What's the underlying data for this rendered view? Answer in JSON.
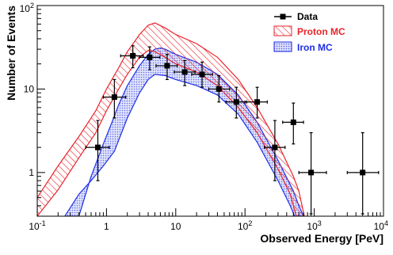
{
  "chart_data": {
    "type": "scatter",
    "xscale": "log",
    "yscale": "log",
    "xlabel": "Observed Energy [PeV]",
    "ylabel": "Number of Events",
    "xlim": [
      0.1,
      10000
    ],
    "ylim": [
      0.3,
      100
    ],
    "x_tick_labels": [
      {
        "base": "10",
        "exp": "-1"
      },
      {
        "base": "1",
        "exp": ""
      },
      {
        "base": "10",
        "exp": ""
      },
      {
        "base": "10",
        "exp": "2"
      },
      {
        "base": "10",
        "exp": "3"
      },
      {
        "base": "10",
        "exp": "4"
      }
    ],
    "y_tick_labels": [
      {
        "base": "1",
        "exp": ""
      },
      {
        "base": "10",
        "exp": ""
      },
      {
        "base": "10",
        "exp": "2"
      }
    ],
    "legend": {
      "position": "top-right",
      "entries": [
        {
          "label": "Data",
          "color": "#000000"
        },
        {
          "label": "Proton MC",
          "color": "#e8242c"
        },
        {
          "label": "Iron MC",
          "color": "#1e2ee8"
        }
      ]
    },
    "series": [
      {
        "name": "Data",
        "color": "#000000",
        "points": [
          {
            "x": 0.75,
            "y": 2,
            "xlo": 0.5,
            "xhi": 1.1,
            "ylo": 0.8,
            "yhi": 4.2
          },
          {
            "x": 1.3,
            "y": 8,
            "xlo": 0.9,
            "xhi": 1.9,
            "ylo": 4.5,
            "yhi": 13
          },
          {
            "x": 2.4,
            "y": 25,
            "xlo": 1.6,
            "xhi": 3.4,
            "ylo": 18,
            "yhi": 33
          },
          {
            "x": 4.2,
            "y": 24,
            "xlo": 3.0,
            "xhi": 5.9,
            "ylo": 17,
            "yhi": 32
          },
          {
            "x": 7.5,
            "y": 19,
            "xlo": 5.2,
            "xhi": 10.5,
            "ylo": 13,
            "yhi": 26
          },
          {
            "x": 13.5,
            "y": 16,
            "xlo": 9.5,
            "xhi": 19,
            "ylo": 11,
            "yhi": 22
          },
          {
            "x": 24,
            "y": 15,
            "xlo": 17,
            "xhi": 34,
            "ylo": 10.5,
            "yhi": 21
          },
          {
            "x": 42,
            "y": 10,
            "xlo": 30,
            "xhi": 60,
            "ylo": 7,
            "yhi": 14.5
          },
          {
            "x": 75,
            "y": 7,
            "xlo": 53,
            "xhi": 106,
            "ylo": 4.5,
            "yhi": 10.5
          },
          {
            "x": 150,
            "y": 7,
            "xlo": 100,
            "xhi": 210,
            "ylo": 4.5,
            "yhi": 10.5
          },
          {
            "x": 270,
            "y": 2,
            "xlo": 190,
            "xhi": 380,
            "ylo": 0.8,
            "yhi": 4.2
          },
          {
            "x": 500,
            "y": 4,
            "xlo": 350,
            "xhi": 700,
            "ylo": 2.2,
            "yhi": 6.8
          },
          {
            "x": 900,
            "y": 1,
            "xlo": 600,
            "xhi": 1500,
            "ylo": 0.32,
            "yhi": 3
          },
          {
            "x": 5000,
            "y": 1,
            "xlo": 3000,
            "xhi": 8500,
            "ylo": 0.32,
            "yhi": 3
          }
        ]
      },
      {
        "name": "Proton MC",
        "color": "#e8242c",
        "band_upper": [
          {
            "x": 0.1,
            "y": 0.5
          },
          {
            "x": 0.2,
            "y": 1.2
          },
          {
            "x": 0.4,
            "y": 2.7
          },
          {
            "x": 0.7,
            "y": 5.5
          },
          {
            "x": 1.0,
            "y": 10
          },
          {
            "x": 1.5,
            "y": 18
          },
          {
            "x": 2.0,
            "y": 28
          },
          {
            "x": 3.0,
            "y": 45
          },
          {
            "x": 4.0,
            "y": 58
          },
          {
            "x": 5.0,
            "y": 62
          },
          {
            "x": 7.0,
            "y": 54
          },
          {
            "x": 10,
            "y": 45
          },
          {
            "x": 20,
            "y": 35
          },
          {
            "x": 40,
            "y": 24
          },
          {
            "x": 80,
            "y": 13
          },
          {
            "x": 150,
            "y": 6
          },
          {
            "x": 300,
            "y": 2.2
          },
          {
            "x": 500,
            "y": 0.9
          },
          {
            "x": 600,
            "y": 0.6
          },
          {
            "x": 720,
            "y": 0.3
          }
        ],
        "band_lower": [
          {
            "x": 0.1,
            "y": 0.3
          },
          {
            "x": 0.2,
            "y": 0.62
          },
          {
            "x": 0.4,
            "y": 1.5
          },
          {
            "x": 0.7,
            "y": 3.0
          },
          {
            "x": 1.0,
            "y": 5.5
          },
          {
            "x": 1.5,
            "y": 10
          },
          {
            "x": 2.0,
            "y": 15
          },
          {
            "x": 3.0,
            "y": 24
          },
          {
            "x": 4.0,
            "y": 29
          },
          {
            "x": 5.0,
            "y": 28
          },
          {
            "x": 7.0,
            "y": 24
          },
          {
            "x": 10,
            "y": 20
          },
          {
            "x": 20,
            "y": 16
          },
          {
            "x": 40,
            "y": 11
          },
          {
            "x": 80,
            "y": 6
          },
          {
            "x": 150,
            "y": 3
          },
          {
            "x": 300,
            "y": 1.1
          },
          {
            "x": 450,
            "y": 0.55
          },
          {
            "x": 550,
            "y": 0.3
          }
        ]
      },
      {
        "name": "Iron MC",
        "color": "#1e2ee8",
        "band_upper": [
          {
            "x": 0.4,
            "y": 0.3
          },
          {
            "x": 0.6,
            "y": 0.9
          },
          {
            "x": 0.9,
            "y": 2.2
          },
          {
            "x": 1.2,
            "y": 4.0
          },
          {
            "x": 1.5,
            "y": 6.5
          },
          {
            "x": 2.0,
            "y": 11
          },
          {
            "x": 3.0,
            "y": 19
          },
          {
            "x": 4.0,
            "y": 26
          },
          {
            "x": 5.0,
            "y": 30
          },
          {
            "x": 6.0,
            "y": 31
          },
          {
            "x": 7.0,
            "y": 30
          },
          {
            "x": 10,
            "y": 26
          },
          {
            "x": 20,
            "y": 21
          },
          {
            "x": 40,
            "y": 15
          },
          {
            "x": 80,
            "y": 8.5
          },
          {
            "x": 150,
            "y": 4
          },
          {
            "x": 300,
            "y": 1.4
          },
          {
            "x": 500,
            "y": 0.6
          },
          {
            "x": 600,
            "y": 0.4
          },
          {
            "x": 700,
            "y": 0.3
          }
        ],
        "band_lower": [
          {
            "x": 0.25,
            "y": 0.3
          },
          {
            "x": 0.4,
            "y": 0.55
          },
          {
            "x": 0.6,
            "y": 0.8
          },
          {
            "x": 0.9,
            "y": 1.2
          },
          {
            "x": 1.3,
            "y": 1.8
          },
          {
            "x": 2.0,
            "y": 4.5
          },
          {
            "x": 3.0,
            "y": 9
          },
          {
            "x": 4.0,
            "y": 13
          },
          {
            "x": 5.0,
            "y": 15
          },
          {
            "x": 7.0,
            "y": 14.5
          },
          {
            "x": 10,
            "y": 13
          },
          {
            "x": 20,
            "y": 11
          },
          {
            "x": 40,
            "y": 8.5
          },
          {
            "x": 80,
            "y": 5
          },
          {
            "x": 150,
            "y": 2.3
          },
          {
            "x": 300,
            "y": 0.8
          },
          {
            "x": 450,
            "y": 0.4
          },
          {
            "x": 520,
            "y": 0.3
          }
        ]
      }
    ]
  }
}
